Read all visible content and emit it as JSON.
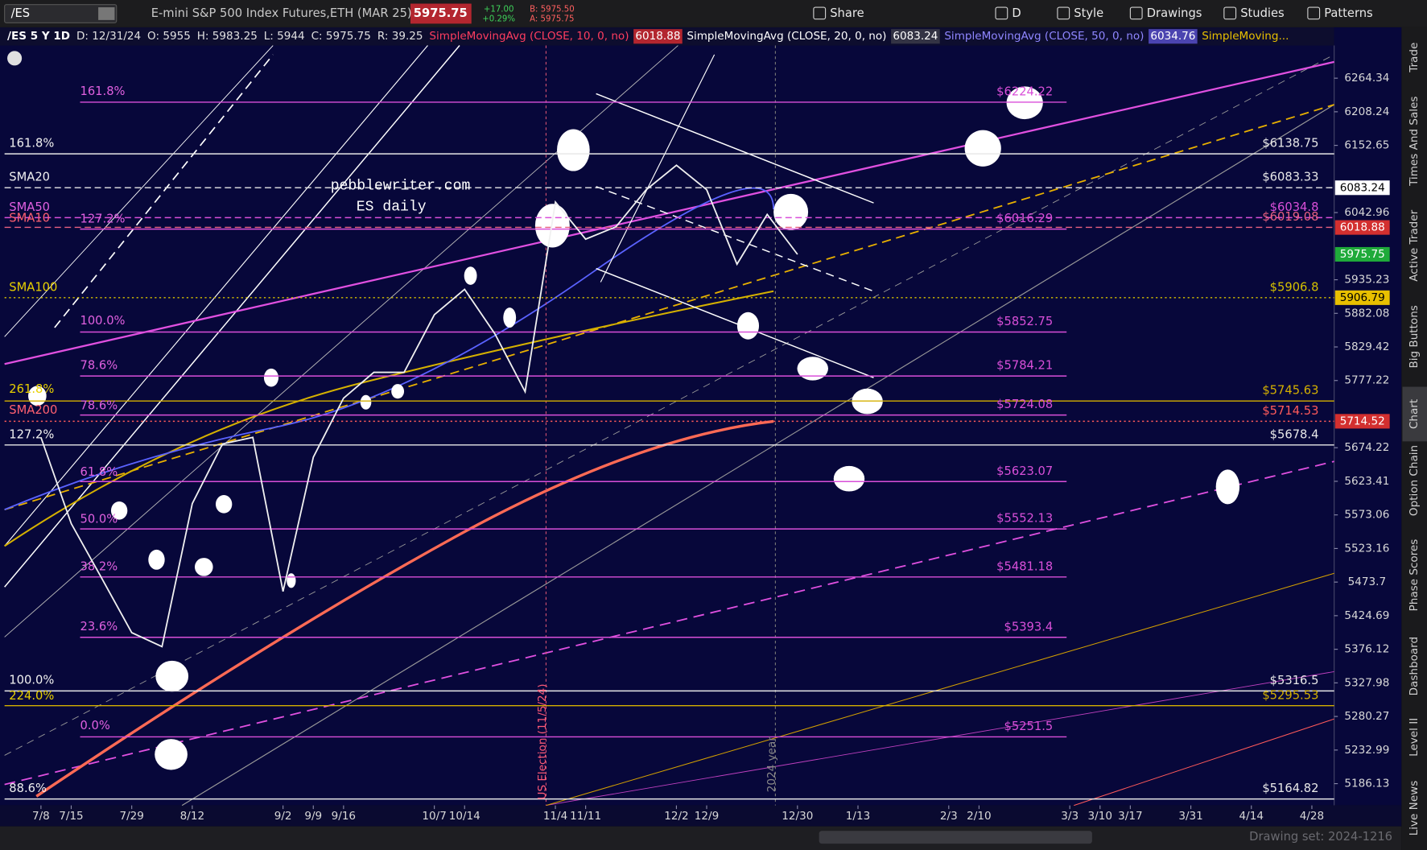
{
  "toolbar": {
    "symbol": "/ES",
    "description": "E-mini S&P 500 Index Futures,ETH (MAR 25)",
    "last": "5975.75",
    "change": "+17.00",
    "change_pct": "+0.29%",
    "bid": "B: 5975.50",
    "ask": "A: 5975.75",
    "buttons": [
      "Share",
      "D",
      "Style",
      "Drawings",
      "Studies",
      "Patterns"
    ]
  },
  "study_header": {
    "items": [
      {
        "text": "/ES 5 Y 1D",
        "color": "#ffffff"
      },
      {
        "text": "D: 12/31/24",
        "color": "#e0e0e0"
      },
      {
        "text": "O: 5955",
        "color": "#e0e0e0"
      },
      {
        "text": "H: 5983.25",
        "color": "#e0e0e0"
      },
      {
        "text": "L: 5944",
        "color": "#e0e0e0"
      },
      {
        "text": "C: 5975.75",
        "color": "#e0e0e0"
      },
      {
        "text": "R: 39.25",
        "color": "#e0e0e0"
      },
      {
        "text": "SimpleMovingAvg (CLOSE, 10, 0, no)",
        "color": "#ff3d5f"
      },
      {
        "text": "6018.88",
        "color": "#ffffff",
        "bg": "#b3262f"
      },
      {
        "text": "SimpleMovingAvg (CLOSE, 20, 0, no)",
        "color": "#ffffff"
      },
      {
        "text": "6083.24",
        "color": "#ffffff",
        "bg": "#333344"
      },
      {
        "text": "SimpleMovingAvg (CLOSE, 50, 0, no)",
        "color": "#8f86ff"
      },
      {
        "text": "6034.76",
        "color": "#ffffff",
        "bg": "#4b44b0"
      },
      {
        "text": "SimpleMoving...",
        "color": "#e8c000"
      }
    ]
  },
  "chart_data": {
    "type": "line",
    "log": true,
    "ylim": [
      5156,
      6319.4
    ],
    "yticks": [
      6264.34,
      6208.24,
      6152.65,
      6042.96,
      5935.23,
      5882.08,
      5829.42,
      5777.22,
      5674.22,
      5623.41,
      5573.06,
      5523.16,
      5473.7,
      5424.69,
      5376.12,
      5327.98,
      5280.27,
      5232.99,
      5186.13
    ],
    "xticks": [
      "7/8",
      "7/15",
      "7/29",
      "8/12",
      "9/2",
      "9/9",
      "9/16",
      "10/7",
      "10/14",
      "11/4",
      "11/11",
      "12/2",
      "12/9",
      "12/30",
      "1/13",
      "2/3",
      "2/10",
      "3/3",
      "3/10",
      "3/17",
      "3/31",
      "4/14",
      "4/28"
    ],
    "x": [
      "7/8",
      "7/15",
      "7/22",
      "7/29",
      "8/5",
      "8/12",
      "8/19",
      "8/26",
      "9/2",
      "9/9",
      "9/16",
      "9/23",
      "9/30",
      "10/7",
      "10/14",
      "10/21",
      "10/28",
      "11/4",
      "11/11",
      "11/18",
      "11/25",
      "12/2",
      "12/9",
      "12/16",
      "12/23",
      "12/30"
    ],
    "values": [
      5690,
      5560,
      5480,
      5400,
      5380,
      5590,
      5680,
      5690,
      5460,
      5660,
      5750,
      5790,
      5790,
      5880,
      5920,
      5850,
      5760,
      6060,
      6000,
      6020,
      6080,
      6120,
      6080,
      5960,
      6040,
      5975.75
    ],
    "color": "#f0f0f0",
    "levels": [
      {
        "value": 6224.22,
        "label": "$6224.22",
        "color": "#d94fd9",
        "style": "solid",
        "extend": false
      },
      {
        "value": 6138.75,
        "label": "$6138.75",
        "color": "#e8e8e8",
        "style": "solid",
        "extend": true
      },
      {
        "value": 6083.33,
        "label": "$6083.33",
        "color": "#e8e8e8",
        "style": "dashed",
        "extend": true
      },
      {
        "value": 6034.8,
        "label": "$6034.8",
        "color": "#d94fd9",
        "style": "dashed",
        "extend": true
      },
      {
        "value": 6019.08,
        "label": "$6019.08",
        "color": "#e86080",
        "style": "dashed",
        "extend": true
      },
      {
        "value": 6016.29,
        "label": "$6016.29",
        "color": "#d94fd9",
        "style": "solid",
        "extend": false
      },
      {
        "value": 5906.8,
        "label": "$5906.8",
        "color": "#d4c000",
        "style": "dotted",
        "extend": true
      },
      {
        "value": 5852.75,
        "label": "$5852.75",
        "color": "#d94fd9",
        "style": "solid",
        "extend": false
      },
      {
        "value": 5784.21,
        "label": "$5784.21",
        "color": "#d94fd9",
        "style": "solid",
        "extend": false
      },
      {
        "value": 5745.63,
        "label": "$5745.63",
        "color": "#d4b000",
        "style": "solid",
        "extend": true
      },
      {
        "value": 5724.08,
        "label": "$5724.08",
        "color": "#d94fd9",
        "style": "solid",
        "extend": false
      },
      {
        "value": 5714.53,
        "label": "$5714.53",
        "color": "#ff5a5a",
        "style": "dotted",
        "extend": true
      },
      {
        "value": 5678.4,
        "label": "$5678.4",
        "color": "#e8e8e8",
        "style": "solid",
        "extend": true
      },
      {
        "value": 5623.07,
        "label": "$5623.07",
        "color": "#d94fd9",
        "style": "solid",
        "extend": false
      },
      {
        "value": 5552.13,
        "label": "$5552.13",
        "color": "#d94fd9",
        "style": "solid",
        "extend": false
      },
      {
        "value": 5481.18,
        "label": "$5481.18",
        "color": "#d94fd9",
        "style": "solid",
        "extend": false
      },
      {
        "value": 5393.4,
        "label": "$5393.4",
        "color": "#d94fd9",
        "style": "solid",
        "extend": false
      },
      {
        "value": 5316.5,
        "label": "$5316.5",
        "color": "#e8e8e8",
        "style": "solid",
        "extend": true
      },
      {
        "value": 5295.53,
        "label": "$5295.53",
        "color": "#d4b000",
        "style": "solid",
        "extend": true
      },
      {
        "value": 5251.5,
        "label": "$5251.5",
        "color": "#d94fd9",
        "style": "solid",
        "extend": false
      },
      {
        "value": 5164.82,
        "label": "$5164.82",
        "color": "#e8e8e8",
        "style": "solid",
        "extend": true
      }
    ],
    "left_labels": [
      "161.8%",
      "161.8%",
      "SMA20",
      "SMA50",
      "SMA10",
      "127.2%",
      "SMA100",
      "100.0%",
      "78.6%",
      "261.8%",
      "78.6%",
      "SMA200",
      "127.2%",
      "61.8%",
      "50.0%",
      "38.2%",
      "23.6%",
      "100.0%",
      "224.0%",
      "0.0%",
      "88.6%"
    ],
    "price_badges": [
      {
        "value": 6083.24,
        "color": "#ffffff",
        "text_color": "#000000"
      },
      {
        "value": 6018.88,
        "color": "#d32f2f",
        "text_color": "#ffffff"
      },
      {
        "value": 5975.75,
        "color": "#1faa3a",
        "text_color": "#ffffff"
      },
      {
        "value": 5906.79,
        "color": "#e8c000",
        "text_color": "#000000"
      },
      {
        "value": 5714.52,
        "color": "#d32f2f",
        "text_color": "#ffffff"
      }
    ],
    "annotations": [
      "pebblewriter.com",
      "ES daily",
      "US Election (11/5/24)",
      "2024 year"
    ]
  },
  "sidebar": {
    "tabs": [
      "Trade",
      "Times And Sales",
      "Active Trader",
      "Big Buttons",
      "Chart",
      "Option Chain",
      "Phase Scores",
      "Dashboard",
      "Level II",
      "Live News"
    ],
    "active": 4
  },
  "footer": {
    "drawing_set": "Drawing set: 2024-1216"
  }
}
